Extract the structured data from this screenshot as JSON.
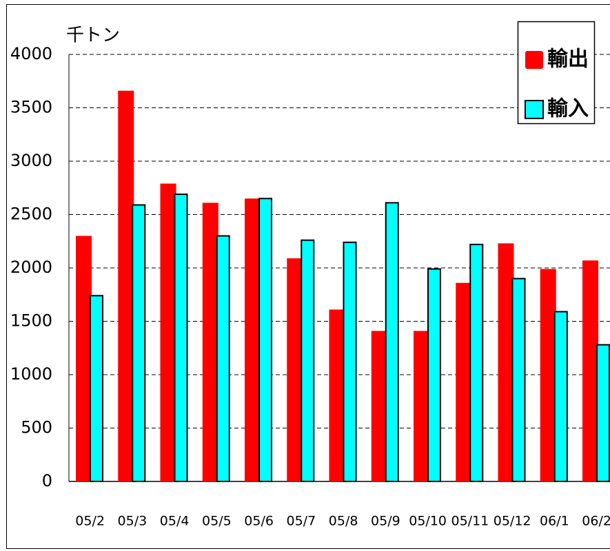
{
  "chart_data": {
    "type": "bar",
    "unit": "千トン",
    "categories": [
      "05/2",
      "05/3",
      "05/4",
      "05/5",
      "05/6",
      "05/7",
      "05/8",
      "05/9",
      "05/10",
      "05/11",
      "05/12",
      "06/1",
      "06/2"
    ],
    "series": [
      {
        "name": "輸出",
        "color": "#ff0000",
        "values": [
          2300,
          3660,
          2790,
          2610,
          2650,
          2090,
          1610,
          1410,
          1410,
          1860,
          2230,
          1990,
          2070
        ]
      },
      {
        "name": "輸入",
        "color": "#00ffff",
        "values": [
          1740,
          2590,
          2690,
          2300,
          2650,
          2260,
          2240,
          2610,
          1990,
          2220,
          1900,
          1590,
          1280
        ]
      }
    ],
    "ylim": [
      0,
      4000
    ],
    "yticks": [
      0,
      500,
      1000,
      1500,
      2000,
      2500,
      3000,
      3500,
      4000
    ],
    "grid": true
  }
}
